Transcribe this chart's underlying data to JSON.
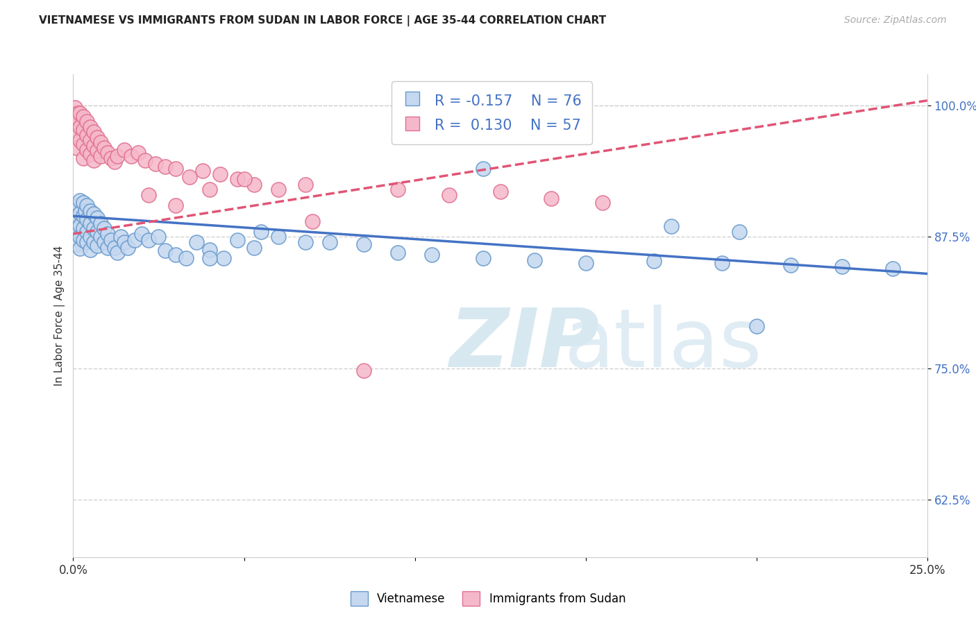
{
  "title": "VIETNAMESE VS IMMIGRANTS FROM SUDAN IN LABOR FORCE | AGE 35-44 CORRELATION CHART",
  "source": "Source: ZipAtlas.com",
  "ylabel": "In Labor Force | Age 35-44",
  "xlim": [
    0.0,
    0.25
  ],
  "ylim": [
    0.57,
    1.03
  ],
  "yticks": [
    0.625,
    0.75,
    0.875,
    1.0
  ],
  "ytick_labels": [
    "62.5%",
    "75.0%",
    "87.5%",
    "100.0%"
  ],
  "xticks": [
    0.0,
    0.05,
    0.1,
    0.15,
    0.2,
    0.25
  ],
  "xtick_labels": [
    "0.0%",
    "",
    "",
    "",
    "",
    "25.0%"
  ],
  "blue_R": -0.157,
  "blue_N": 76,
  "pink_R": 0.13,
  "pink_N": 57,
  "blue_fill_color": "#c5d8ef",
  "pink_fill_color": "#f5b8ca",
  "blue_edge_color": "#6699cc",
  "pink_edge_color": "#e07090",
  "blue_line_color": "#4472c4",
  "pink_line_color": "#e05575",
  "legend_label_blue": "Vietnamese",
  "legend_label_pink": "Immigrants from Sudan",
  "blue_trend_x0": 0.0,
  "blue_trend_y0": 0.895,
  "blue_trend_x1": 0.25,
  "blue_trend_y1": 0.84,
  "pink_trend_x0": 0.0,
  "pink_trend_y0": 0.878,
  "pink_trend_x1": 0.25,
  "pink_trend_y1": 1.005,
  "blue_scatter_x": [
    0.0005,
    0.0007,
    0.001,
    0.001,
    0.001,
    0.001,
    0.0013,
    0.0015,
    0.002,
    0.002,
    0.002,
    0.002,
    0.002,
    0.003,
    0.003,
    0.003,
    0.003,
    0.0035,
    0.004,
    0.004,
    0.004,
    0.004,
    0.005,
    0.005,
    0.005,
    0.005,
    0.006,
    0.006,
    0.006,
    0.007,
    0.007,
    0.007,
    0.008,
    0.008,
    0.009,
    0.009,
    0.01,
    0.01,
    0.011,
    0.012,
    0.013,
    0.014,
    0.015,
    0.016,
    0.018,
    0.02,
    0.022,
    0.025,
    0.027,
    0.03,
    0.033,
    0.036,
    0.04,
    0.044,
    0.048,
    0.053,
    0.06,
    0.068,
    0.075,
    0.085,
    0.095,
    0.105,
    0.12,
    0.135,
    0.15,
    0.17,
    0.19,
    0.21,
    0.225,
    0.24,
    0.12,
    0.2,
    0.175,
    0.195,
    0.04,
    0.055
  ],
  "blue_scatter_y": [
    0.895,
    0.887,
    0.9,
    0.888,
    0.878,
    0.868,
    0.895,
    0.905,
    0.91,
    0.898,
    0.886,
    0.875,
    0.864,
    0.908,
    0.895,
    0.883,
    0.872,
    0.9,
    0.905,
    0.892,
    0.88,
    0.87,
    0.9,
    0.888,
    0.875,
    0.863,
    0.897,
    0.883,
    0.87,
    0.893,
    0.88,
    0.867,
    0.888,
    0.875,
    0.883,
    0.87,
    0.878,
    0.865,
    0.872,
    0.865,
    0.86,
    0.875,
    0.87,
    0.865,
    0.872,
    0.878,
    0.872,
    0.875,
    0.862,
    0.858,
    0.855,
    0.87,
    0.863,
    0.855,
    0.872,
    0.865,
    0.875,
    0.87,
    0.87,
    0.868,
    0.86,
    0.858,
    0.855,
    0.853,
    0.85,
    0.852,
    0.85,
    0.848,
    0.847,
    0.845,
    0.94,
    0.79,
    0.885,
    0.88,
    0.855,
    0.88
  ],
  "pink_scatter_x": [
    0.0005,
    0.0007,
    0.001,
    0.001,
    0.001,
    0.0013,
    0.0015,
    0.002,
    0.002,
    0.002,
    0.003,
    0.003,
    0.003,
    0.003,
    0.004,
    0.004,
    0.004,
    0.005,
    0.005,
    0.005,
    0.006,
    0.006,
    0.006,
    0.007,
    0.007,
    0.008,
    0.008,
    0.009,
    0.01,
    0.011,
    0.012,
    0.013,
    0.015,
    0.017,
    0.019,
    0.021,
    0.024,
    0.027,
    0.03,
    0.034,
    0.038,
    0.043,
    0.048,
    0.053,
    0.06,
    0.068,
    0.03,
    0.04,
    0.095,
    0.11,
    0.125,
    0.14,
    0.155,
    0.022,
    0.05,
    0.07,
    0.085
  ],
  "pink_scatter_y": [
    0.998,
    0.99,
    0.985,
    0.972,
    0.96,
    0.993,
    0.987,
    0.993,
    0.98,
    0.967,
    0.99,
    0.977,
    0.963,
    0.95,
    0.985,
    0.972,
    0.958,
    0.98,
    0.967,
    0.954,
    0.975,
    0.962,
    0.948,
    0.97,
    0.957,
    0.965,
    0.952,
    0.96,
    0.955,
    0.95,
    0.947,
    0.952,
    0.958,
    0.952,
    0.955,
    0.948,
    0.945,
    0.942,
    0.94,
    0.932,
    0.938,
    0.935,
    0.93,
    0.925,
    0.92,
    0.925,
    0.905,
    0.92,
    0.92,
    0.915,
    0.918,
    0.912,
    0.908,
    0.915,
    0.93,
    0.89,
    0.748
  ]
}
